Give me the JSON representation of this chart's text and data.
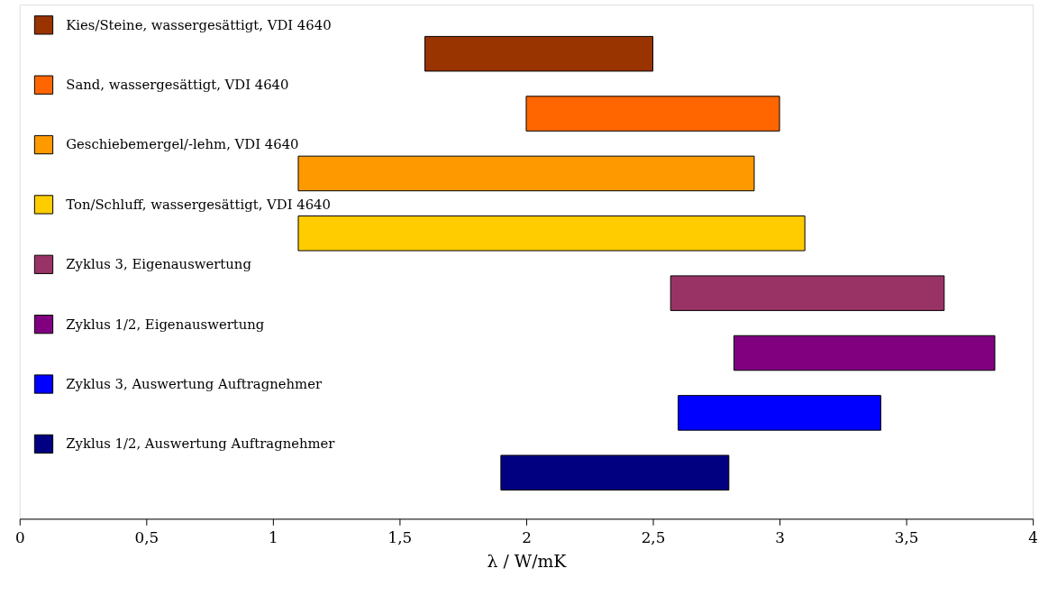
{
  "chart_data": {
    "type": "bar",
    "orientation": "horizontal",
    "xlabel": "λ / W/mK",
    "categories": [
      "Kies/Steine, wassergesättigt, VDI 4640",
      "Sand, wassergesättigt, VDI 4640",
      "Geschiebemergel/-lehm, VDI 4640",
      "Ton/Schluff, wassergesättigt, VDI 4640",
      "Zyklus 3, Eigenauswertung",
      "Zyklus 1/2, Eigenauswertung",
      "Zyklus 3, Auswertung Auftragnehmer",
      "Zyklus 1/2, Auswertung Auftragnehmer"
    ],
    "base": [
      1.6,
      2.0,
      1.1,
      1.1,
      2.57,
      2.82,
      2.6,
      1.9
    ],
    "values": [
      0.9,
      1.0,
      1.8,
      2.0,
      1.08,
      1.03,
      0.8,
      0.9
    ],
    "colors": [
      "#993300",
      "#ff6600",
      "#ff9900",
      "#ffcc00",
      "#993366",
      "#800080",
      "#0000ff",
      "#000080"
    ],
    "xlim": [
      0,
      4
    ],
    "xticks": [
      0,
      {
        "value": 0.5,
        "label": "0,5"
      },
      1,
      {
        "value": 1.5,
        "label": "1,5"
      },
      2,
      {
        "value": 2.5,
        "label": "2,5"
      },
      3,
      {
        "value": 3.5,
        "label": "3,5"
      },
      4
    ],
    "grid": false
  }
}
